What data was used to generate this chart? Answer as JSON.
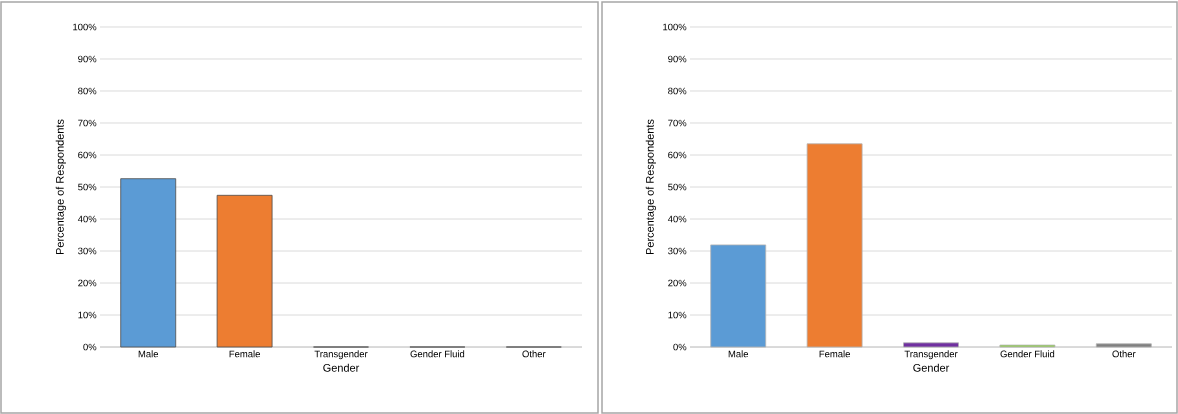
{
  "chart_data": [
    {
      "type": "bar",
      "categories": [
        "Male",
        "Female",
        "Transgender",
        "Gender Fluid",
        "Other"
      ],
      "values": [
        52.6,
        47.4,
        0,
        0,
        0
      ],
      "colors": [
        "#5b9bd5",
        "#ed7d31",
        "#7030a0",
        "#92d050",
        "#808080"
      ],
      "xlabel": "Gender",
      "ylabel": "Percentage of Respondents",
      "ylim": [
        0,
        100
      ],
      "yticks": [
        {
          "value": 0,
          "label": "0%"
        },
        {
          "value": 10,
          "label": "10%"
        },
        {
          "value": 20,
          "label": "20%"
        },
        {
          "value": 30,
          "label": "30%"
        },
        {
          "value": 40,
          "label": "40%"
        },
        {
          "value": 50,
          "label": "50%"
        },
        {
          "value": 60,
          "label": "60%"
        },
        {
          "value": 70,
          "label": "70%"
        },
        {
          "value": 80,
          "label": "80%"
        },
        {
          "value": 90,
          "label": "90%"
        },
        {
          "value": 100,
          "label": "100%"
        }
      ],
      "grid": "y"
    },
    {
      "type": "bar",
      "categories": [
        "Male",
        "Female",
        "Transgender",
        "Gender Fluid",
        "Other"
      ],
      "values": [
        31.9,
        63.5,
        1.3,
        0.6,
        1.0
      ],
      "colors": [
        "#5b9bd5",
        "#ed7d31",
        "#7030a0",
        "#92d050",
        "#808080"
      ],
      "xlabel": "Gender",
      "ylabel": "Percentage of Respondents",
      "ylim": [
        0,
        100
      ],
      "yticks": [
        {
          "value": 0,
          "label": "0%"
        },
        {
          "value": 10,
          "label": "10%"
        },
        {
          "value": 20,
          "label": "20%"
        },
        {
          "value": 30,
          "label": "30%"
        },
        {
          "value": 40,
          "label": "40%"
        },
        {
          "value": 50,
          "label": "50%"
        },
        {
          "value": 60,
          "label": "60%"
        },
        {
          "value": 70,
          "label": "70%"
        },
        {
          "value": 80,
          "label": "80%"
        },
        {
          "value": 90,
          "label": "90%"
        },
        {
          "value": 100,
          "label": "100%"
        }
      ],
      "grid": "y"
    }
  ]
}
